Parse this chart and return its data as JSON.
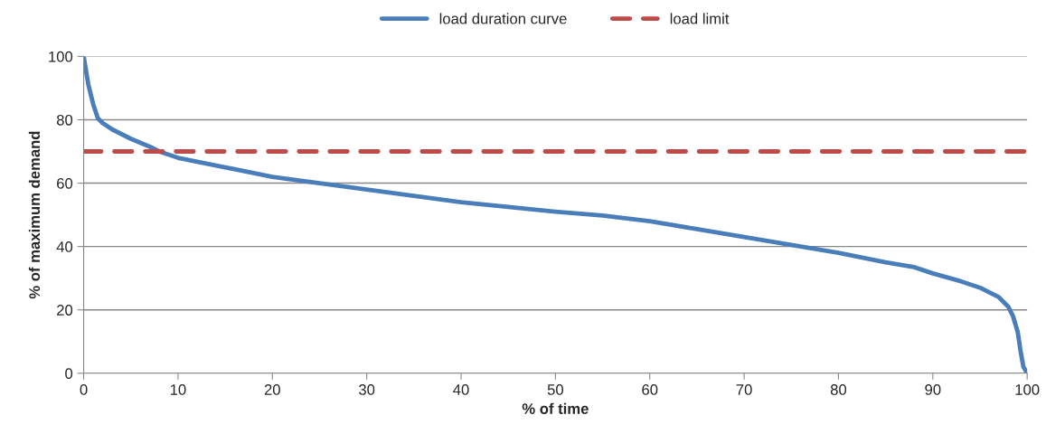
{
  "chart_data": {
    "type": "line",
    "xlabel": "% of time",
    "ylabel": "% of maximum demand",
    "xlim": [
      0,
      100
    ],
    "xticks": [
      0,
      10,
      20,
      30,
      40,
      50,
      60,
      70,
      80,
      90,
      100
    ],
    "ylim": [
      0,
      100
    ],
    "yticks": [
      0,
      20,
      40,
      60,
      80,
      100
    ],
    "grid": "y",
    "legend": "top",
    "marker": "none",
    "series": [
      {
        "name": "load duration curve",
        "color": "#4a7ebb",
        "line_style": "solid",
        "x": [
          0,
          0.5,
          1,
          1.5,
          2,
          3,
          4,
          5,
          7,
          8,
          10,
          15,
          20,
          25,
          30,
          35,
          40,
          45,
          50,
          55,
          60,
          65,
          70,
          75,
          80,
          85,
          88,
          90,
          93,
          95,
          97,
          98,
          98.5,
          99,
          99.3,
          99.6,
          100
        ],
        "values": [
          100,
          91,
          85,
          80.5,
          79,
          77,
          75.5,
          74,
          71.5,
          70,
          68,
          65,
          62,
          60,
          58,
          56,
          54,
          52.5,
          51,
          49.8,
          48,
          45.5,
          43,
          40.5,
          38,
          35,
          33.5,
          31.5,
          29,
          27,
          24,
          21,
          18,
          13,
          7,
          2,
          0
        ]
      },
      {
        "name": "load limit",
        "color": "#be4b48",
        "line_style": "dashed",
        "x": [
          0,
          100
        ],
        "values": [
          70,
          70
        ]
      }
    ]
  }
}
